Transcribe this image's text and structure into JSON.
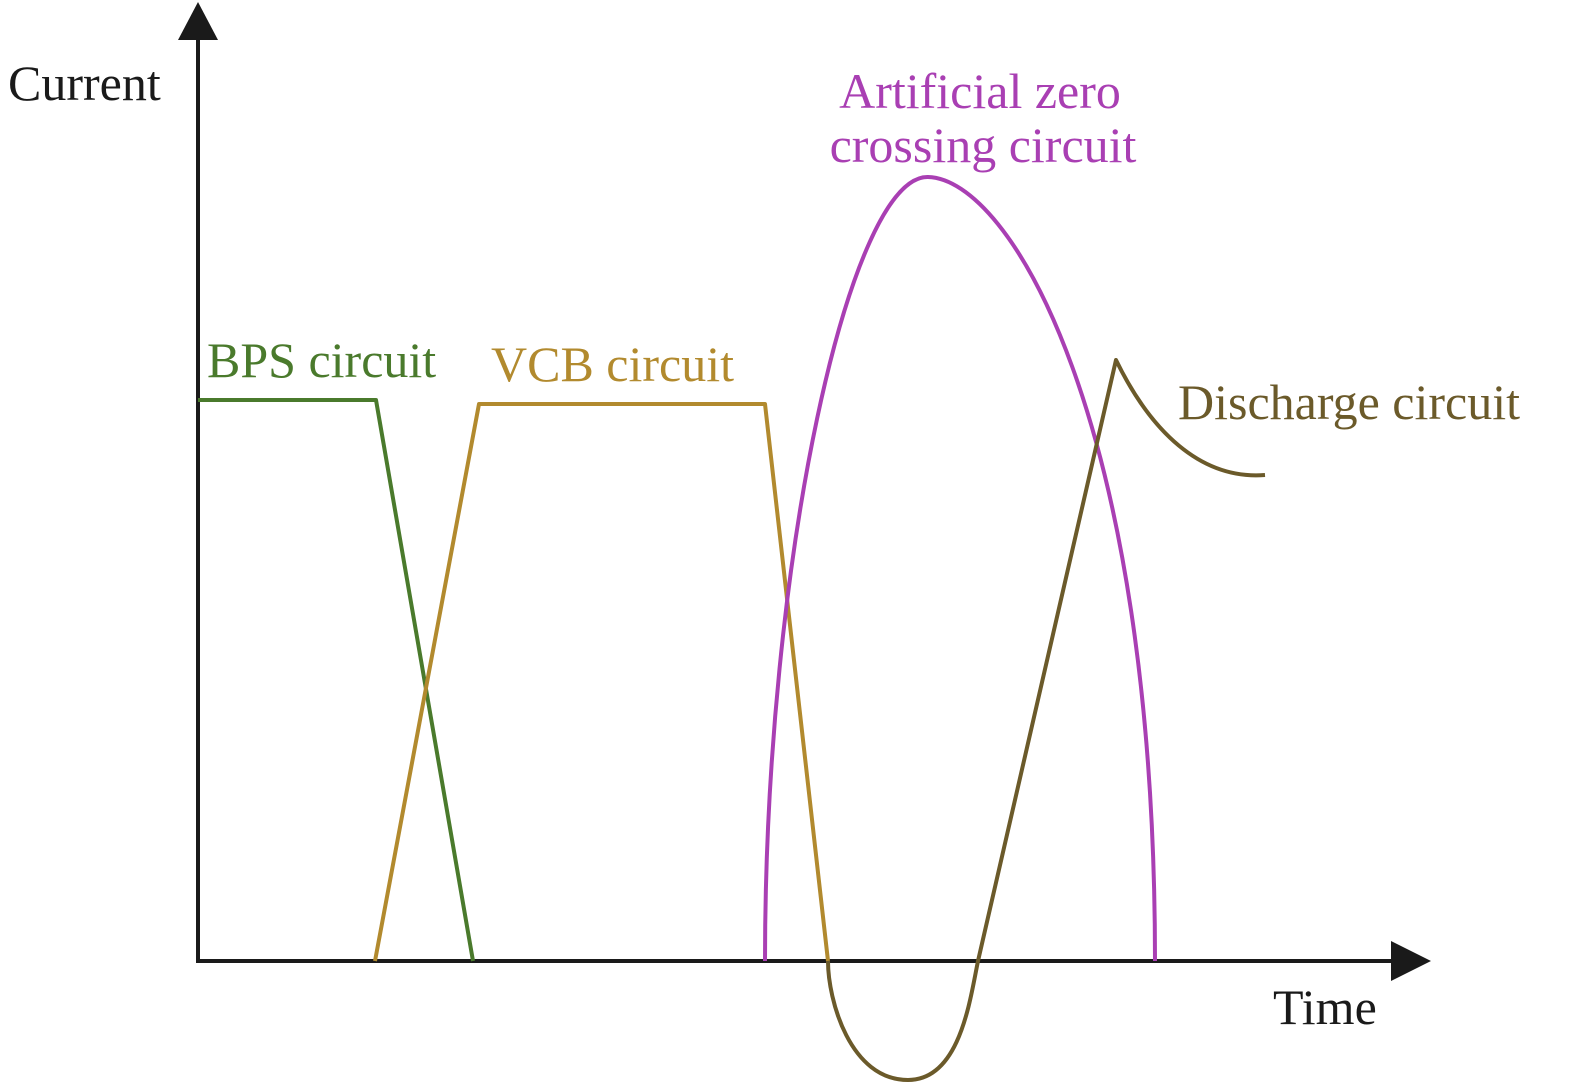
{
  "diagram": {
    "y_axis_label": "Current",
    "x_axis_label": "Time",
    "curves": [
      {
        "id": "bps",
        "label": "BPS circuit",
        "color": "#4a7a2c"
      },
      {
        "id": "vcb",
        "label": "VCB circuit",
        "color": "#b28a2e"
      },
      {
        "id": "azc",
        "label_lines": [
          "Artificial zero",
          "crossing circuit"
        ],
        "color": "#a93fb3"
      },
      {
        "id": "discharge",
        "label": "Discharge circuit",
        "color": "#6b5a2a"
      }
    ],
    "axis_color": "#1a1a1a"
  }
}
